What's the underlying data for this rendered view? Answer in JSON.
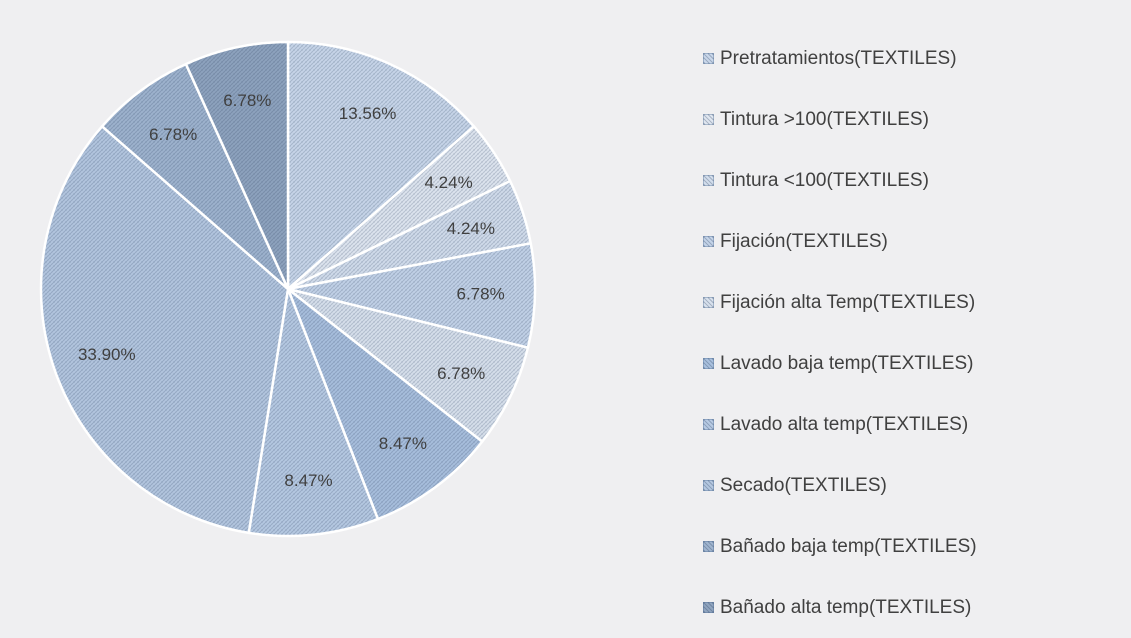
{
  "chart_data": {
    "type": "pie",
    "title": "",
    "legend_position": "right",
    "slices": [
      {
        "label": "Pretratamientos(TEXTILES)",
        "value": 13.56,
        "value_label": "13.56%",
        "color": "#c9d7ea"
      },
      {
        "label": "Tintura >100(TEXTILES)",
        "value": 4.24,
        "value_label": "4.24%",
        "color": "#dfe6f0"
      },
      {
        "label": "Tintura <100(TEXTILES)",
        "value": 4.24,
        "value_label": "4.24%",
        "color": "#d2ddec"
      },
      {
        "label": "Fijación(TEXTILES)",
        "value": 6.78,
        "value_label": "6.78%",
        "color": "#c3d3e8"
      },
      {
        "label": "Fijación alta Temp(TEXTILES)",
        "value": 6.78,
        "value_label": "6.78%",
        "color": "#d8e1ed"
      },
      {
        "label": "Lavado baja temp(TEXTILES)",
        "value": 8.47,
        "value_label": "8.47%",
        "color": "#a9c0de"
      },
      {
        "label": "Lavado alta temp(TEXTILES)",
        "value": 8.47,
        "value_label": "8.47%",
        "color": "#b7cae3"
      },
      {
        "label": "Secado(TEXTILES)",
        "value": 33.9,
        "value_label": "33.90%",
        "color": "#b4c7e0"
      },
      {
        "label": "Bañado baja temp(TEXTILES)",
        "value": 6.78,
        "value_label": "6.78%",
        "color": "#9fb4cf"
      },
      {
        "label": "Bañado alta temp(TEXTILES)",
        "value": 6.78,
        "value_label": "6.78%",
        "color": "#8fa4bf"
      }
    ]
  }
}
